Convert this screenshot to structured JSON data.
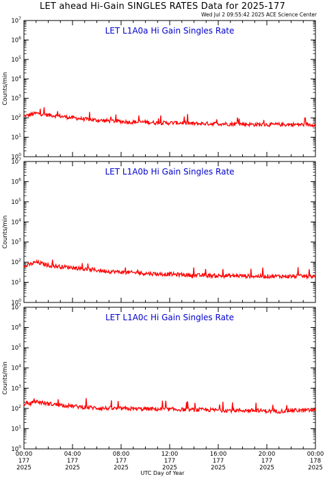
{
  "page": {
    "title": "LET ahead Hi-Gain SINGLES RATES Data for 2025-177",
    "timestamp": "Wed Jul  2 09:55:42 2025 ACE Science Center",
    "xlabel": "UTC Day of Year"
  },
  "colors": {
    "series": "#ff0000",
    "panel_title": "#0000cc",
    "axis": "#000000"
  },
  "chart_data": [
    {
      "type": "line",
      "title": "LET L1A0a Hi Gain Singles Rate",
      "ylabel": "Counts/min",
      "y_scale": "log",
      "ylim": [
        1,
        10000000
      ],
      "xlim": [
        0,
        24
      ],
      "series": [
        {
          "x": [
            0,
            1,
            2,
            3,
            4,
            5,
            6,
            7,
            8,
            9,
            10,
            11,
            12,
            13,
            14,
            15,
            16,
            17,
            18,
            19,
            20,
            21,
            22,
            23,
            24
          ],
          "values": [
            120,
            170,
            140,
            120,
            100,
            85,
            75,
            70,
            65,
            60,
            60,
            55,
            55,
            55,
            50,
            50,
            50,
            48,
            48,
            45,
            45,
            45,
            45,
            45,
            45
          ]
        }
      ]
    },
    {
      "type": "line",
      "title": "LET L1A0b Hi Gain Singles Rate",
      "ylabel": "Counts/min",
      "y_scale": "log",
      "ylim": [
        1,
        10000000
      ],
      "xlim": [
        0,
        24
      ],
      "series": [
        {
          "x": [
            0,
            1,
            2,
            3,
            4,
            5,
            6,
            7,
            8,
            9,
            10,
            11,
            12,
            13,
            14,
            15,
            16,
            17,
            18,
            19,
            20,
            21,
            22,
            23,
            24
          ],
          "values": [
            60,
            100,
            70,
            60,
            55,
            45,
            40,
            35,
            32,
            30,
            28,
            26,
            25,
            24,
            22,
            22,
            21,
            21,
            21,
            20,
            20,
            20,
            20,
            20,
            20
          ]
        }
      ]
    },
    {
      "type": "line",
      "title": "LET L1A0c Hi Gain Singles Rate",
      "ylabel": "Counts/min",
      "y_scale": "log",
      "ylim": [
        1,
        10000000
      ],
      "xlim": [
        0,
        24
      ],
      "series": [
        {
          "x": [
            0,
            1,
            2,
            3,
            4,
            5,
            6,
            7,
            8,
            9,
            10,
            11,
            12,
            13,
            14,
            15,
            16,
            17,
            18,
            19,
            20,
            21,
            22,
            23,
            24
          ],
          "values": [
            140,
            220,
            170,
            150,
            130,
            115,
            105,
            100,
            98,
            95,
            95,
            92,
            90,
            88,
            85,
            85,
            82,
            80,
            80,
            78,
            75,
            72,
            80,
            80,
            82
          ]
        }
      ]
    }
  ],
  "x_ticks": [
    {
      "x": 0,
      "time": "00:00",
      "doy": "177",
      "year": "2025"
    },
    {
      "x": 4,
      "time": "04:00",
      "doy": "177",
      "year": "2025"
    },
    {
      "x": 8,
      "time": "08:00",
      "doy": "177",
      "year": "2025"
    },
    {
      "x": 12,
      "time": "12:00",
      "doy": "177",
      "year": "2025"
    },
    {
      "x": 16,
      "time": "16:00",
      "doy": "177",
      "year": "2025"
    },
    {
      "x": 20,
      "time": "20:00",
      "doy": "177",
      "year": "2025"
    },
    {
      "x": 24,
      "time": "00:00",
      "doy": "178",
      "year": "2025"
    }
  ]
}
